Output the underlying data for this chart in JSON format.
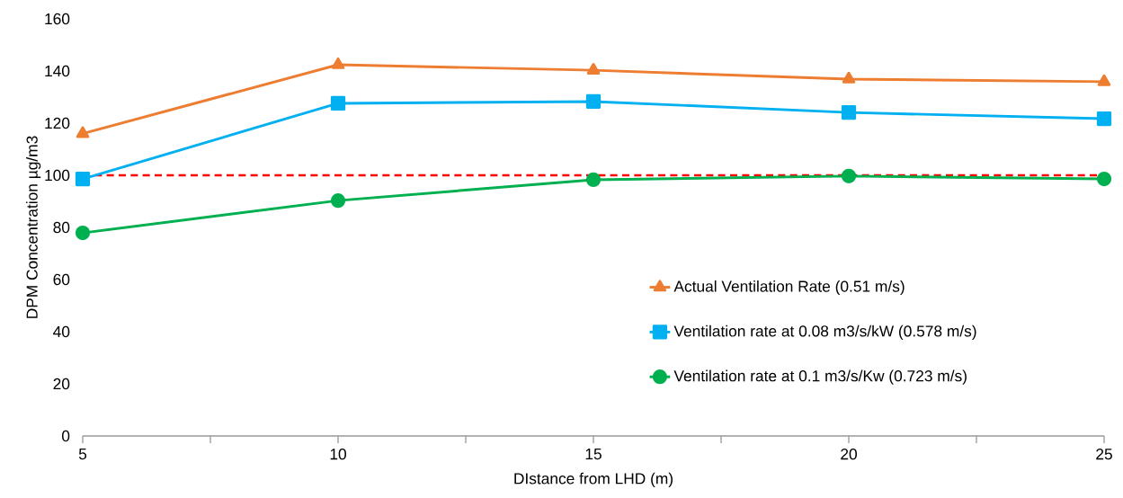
{
  "chart_data": {
    "type": "line",
    "xlabel": "DIstance from LHD (m)",
    "ylabel": "DPM Concentration µg/m3",
    "x": [
      5,
      10,
      15,
      20,
      25
    ],
    "series": [
      {
        "name": "Actual Ventilation Rate (0.51 m/s)",
        "color": "#ed7d31",
        "marker": "triangle",
        "values": [
          116,
          142.4,
          140.3,
          136.9,
          135.9
        ]
      },
      {
        "name": "Ventilation rate at  0.08 m3/s/kW (0.578 m/s)",
        "color": "#00b0f0",
        "marker": "square",
        "values": [
          98.6,
          127.6,
          128.3,
          124.1,
          121.7
        ]
      },
      {
        "name": "Ventilation rate at 0.1 m3/s/Kw (0.723 m/s)",
        "color": "#00b050",
        "marker": "circle",
        "values": [
          77.9,
          90.3,
          98.3,
          99.7,
          98.6
        ]
      }
    ],
    "ref_lines": [
      {
        "axis": "y",
        "value": 100,
        "color": "#ff0000",
        "line_style": "dashed"
      }
    ],
    "xlim": [
      5,
      25
    ],
    "xticks": [
      5,
      {
        "value": 7.5,
        "label": null
      },
      10,
      {
        "value": 12.5,
        "label": null
      },
      15,
      {
        "value": 17.5,
        "label": null
      },
      20,
      {
        "value": 22.5,
        "label": null
      },
      25
    ],
    "ylim": [
      0,
      160
    ],
    "yticks": [
      0,
      20,
      40,
      60,
      80,
      100,
      120,
      140,
      160
    ],
    "grid": false,
    "legend": "bottom right",
    "line_style": "solid"
  }
}
